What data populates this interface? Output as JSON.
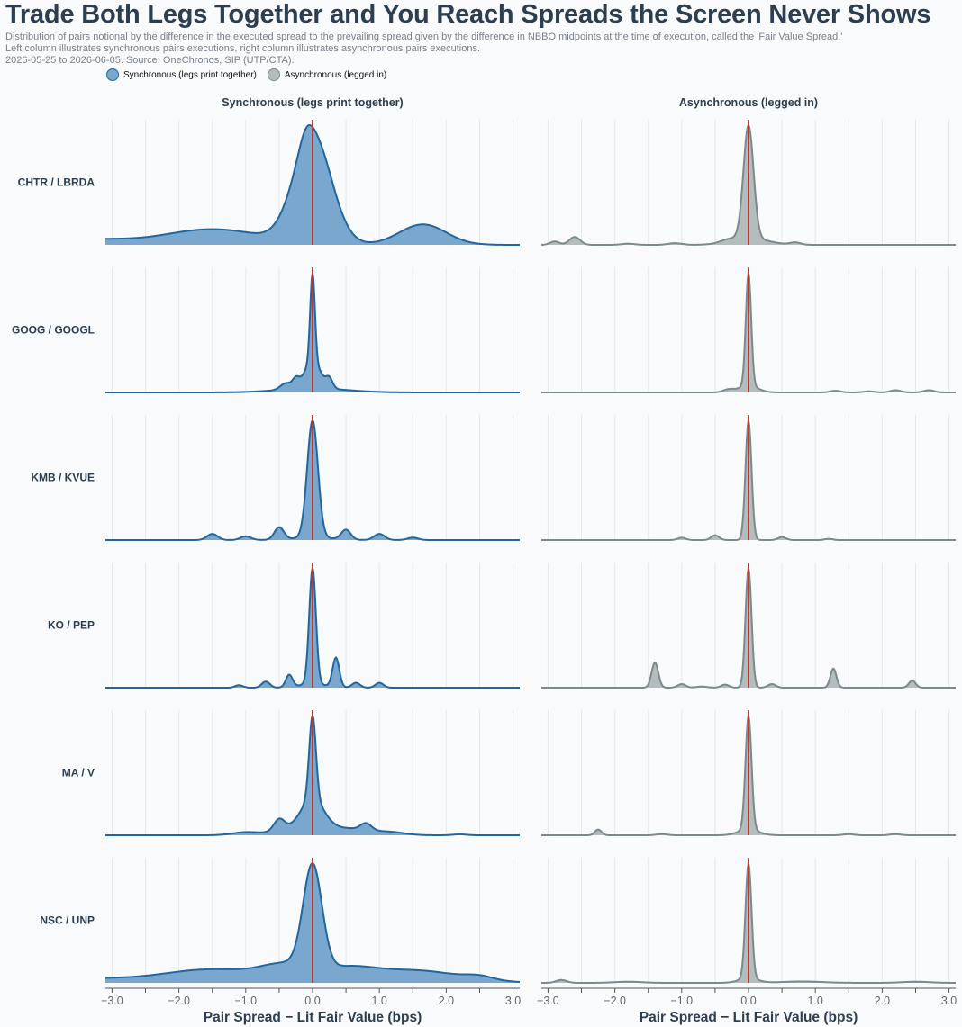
{
  "header": {
    "title": "Trade Both Legs Together and You Reach Spreads the Screen Never Shows",
    "subtitle_1": "Distribution of pairs notional by the difference in the executed spread to the prevailing spread given by the difference in NBBO midpoints at the time of execution, called the 'Fair Value Spread.'",
    "subtitle_2": "Left column illustrates synchronous pairs executions, right column illustrates asynchronous pairs executions.",
    "subtitle_3": "2026-05-25 to 2026-06-05. Source: OneChronos, SIP (UTP/CTA)."
  },
  "colors": {
    "sync_fill": "#7aa7cd",
    "sync_line": "#2166a0",
    "async_fill": "#b4bcbd",
    "async_line": "#7b8a8c",
    "zero_line": "#c0392b",
    "text": "#2c3e50"
  },
  "chart_data": {
    "type": "area",
    "title": "Trade Both Legs Together and You Reach Spreads the Screen Never Shows",
    "xlabel": "Pair Spread − Lit Fair Value (bps)",
    "xlim": [
      -3.1,
      3.1
    ],
    "x_ticks": [
      -3.0,
      -2.0,
      -1.0,
      0.0,
      1.0,
      2.0,
      3.0
    ],
    "x_tick_labels": [
      "−3.0",
      "−2.0",
      "−1.0",
      "0.0",
      "1.0",
      "2.0",
      "3.0"
    ],
    "reference_line_x": 0.0,
    "columns": [
      "Synchronous (legs print together)",
      "Asynchronous (legged in)"
    ],
    "legend": [
      "Synchronous (legs print together)",
      "Asynchronous (legged in)"
    ],
    "legend_position": "top-left",
    "pairs": [
      "CHTR / LBRDA",
      "GOOG / GOOGL",
      "KMB / KVUE",
      "KO / PEP",
      "MA / V",
      "NSC / UNP"
    ],
    "density_peaks": [
      {
        "pair": "CHTR / LBRDA",
        "synchronous": [
          [
            0.0,
            0.28,
            0.9
          ],
          [
            -0.1,
            0.1,
            0.1
          ],
          [
            1.65,
            0.35,
            0.17
          ],
          [
            -1.5,
            0.75,
            0.13
          ],
          [
            -3.3,
            0.5,
            0.04
          ]
        ],
        "asynchronous": [
          [
            0.0,
            0.075,
            1.0
          ],
          [
            0.0,
            0.28,
            0.06
          ],
          [
            -2.6,
            0.08,
            0.07
          ],
          [
            -2.9,
            0.07,
            0.03
          ],
          [
            -1.1,
            0.1,
            0.015
          ],
          [
            -0.3,
            0.12,
            0.02
          ],
          [
            0.7,
            0.08,
            0.02
          ],
          [
            -1.8,
            0.1,
            0.01
          ]
        ]
      },
      {
        "pair": "GOOG / GOOGL",
        "synchronous": [
          [
            0.0,
            0.035,
            0.85
          ],
          [
            0.0,
            0.12,
            0.26
          ],
          [
            -0.25,
            0.05,
            0.08
          ],
          [
            0.25,
            0.05,
            0.09
          ],
          [
            -0.4,
            0.08,
            0.06
          ],
          [
            0.0,
            0.5,
            0.04
          ]
        ],
        "asynchronous": [
          [
            0.0,
            0.04,
            1.0
          ],
          [
            0.0,
            0.14,
            0.06
          ],
          [
            -0.3,
            0.08,
            0.025
          ],
          [
            1.3,
            0.08,
            0.015
          ],
          [
            2.2,
            0.08,
            0.02
          ],
          [
            2.7,
            0.08,
            0.02
          ],
          [
            1.8,
            0.08,
            0.01
          ]
        ]
      },
      {
        "pair": "KMB / KVUE",
        "synchronous": [
          [
            0.0,
            0.08,
            0.95
          ],
          [
            -0.5,
            0.07,
            0.1
          ],
          [
            0.5,
            0.07,
            0.08
          ],
          [
            -1.5,
            0.08,
            0.05
          ],
          [
            -1.0,
            0.08,
            0.03
          ],
          [
            1.0,
            0.08,
            0.05
          ],
          [
            1.5,
            0.08,
            0.02
          ],
          [
            0.0,
            0.3,
            0.02
          ]
        ],
        "asynchronous": [
          [
            0.0,
            0.045,
            1.0
          ],
          [
            -0.5,
            0.06,
            0.04
          ],
          [
            0.5,
            0.06,
            0.025
          ],
          [
            -1.0,
            0.06,
            0.02
          ],
          [
            1.2,
            0.06,
            0.01
          ]
        ]
      },
      {
        "pair": "KO / PEP",
        "synchronous": [
          [
            0.0,
            0.05,
            0.95
          ],
          [
            0.35,
            0.05,
            0.24
          ],
          [
            -0.35,
            0.05,
            0.1
          ],
          [
            -0.7,
            0.06,
            0.05
          ],
          [
            0.65,
            0.06,
            0.04
          ],
          [
            1.0,
            0.06,
            0.04
          ],
          [
            -1.1,
            0.06,
            0.02
          ],
          [
            0.0,
            0.2,
            0.03
          ]
        ],
        "asynchronous": [
          [
            0.0,
            0.045,
            1.0
          ],
          [
            -1.4,
            0.05,
            0.21
          ],
          [
            1.27,
            0.045,
            0.16
          ],
          [
            2.45,
            0.05,
            0.06
          ],
          [
            -1.0,
            0.06,
            0.03
          ],
          [
            -0.35,
            0.06,
            0.025
          ],
          [
            0.35,
            0.06,
            0.03
          ],
          [
            -0.7,
            0.08,
            0.01
          ]
        ]
      },
      {
        "pair": "MA / V",
        "synchronous": [
          [
            0.0,
            0.05,
            0.85
          ],
          [
            0.0,
            0.17,
            0.3
          ],
          [
            -0.5,
            0.08,
            0.12
          ],
          [
            0.8,
            0.08,
            0.07
          ],
          [
            -0.25,
            0.3,
            0.06
          ],
          [
            0.5,
            0.4,
            0.07
          ],
          [
            -1.0,
            0.2,
            0.03
          ],
          [
            1.2,
            0.2,
            0.02
          ],
          [
            2.2,
            0.1,
            0.01
          ]
        ],
        "asynchronous": [
          [
            0.0,
            0.045,
            1.0
          ],
          [
            0.0,
            0.15,
            0.05
          ],
          [
            -2.25,
            0.05,
            0.05
          ],
          [
            -1.3,
            0.08,
            0.01
          ],
          [
            1.5,
            0.08,
            0.01
          ],
          [
            2.2,
            0.08,
            0.01
          ]
        ]
      },
      {
        "pair": "NSC / UNP",
        "synchronous": [
          [
            0.0,
            0.14,
            0.92
          ],
          [
            -0.4,
            0.35,
            0.12
          ],
          [
            0.5,
            0.4,
            0.1
          ],
          [
            -1.5,
            0.8,
            0.12
          ],
          [
            1.5,
            0.7,
            0.11
          ],
          [
            2.5,
            0.2,
            0.03
          ],
          [
            -3.3,
            0.5,
            0.03
          ]
        ],
        "asynchronous": [
          [
            0.0,
            0.045,
            1.0
          ],
          [
            0.0,
            0.14,
            0.04
          ],
          [
            -2.8,
            0.08,
            0.025
          ],
          [
            -1.8,
            0.2,
            0.01
          ],
          [
            0.8,
            0.3,
            0.012
          ],
          [
            2.5,
            0.2,
            0.01
          ]
        ]
      }
    ]
  }
}
